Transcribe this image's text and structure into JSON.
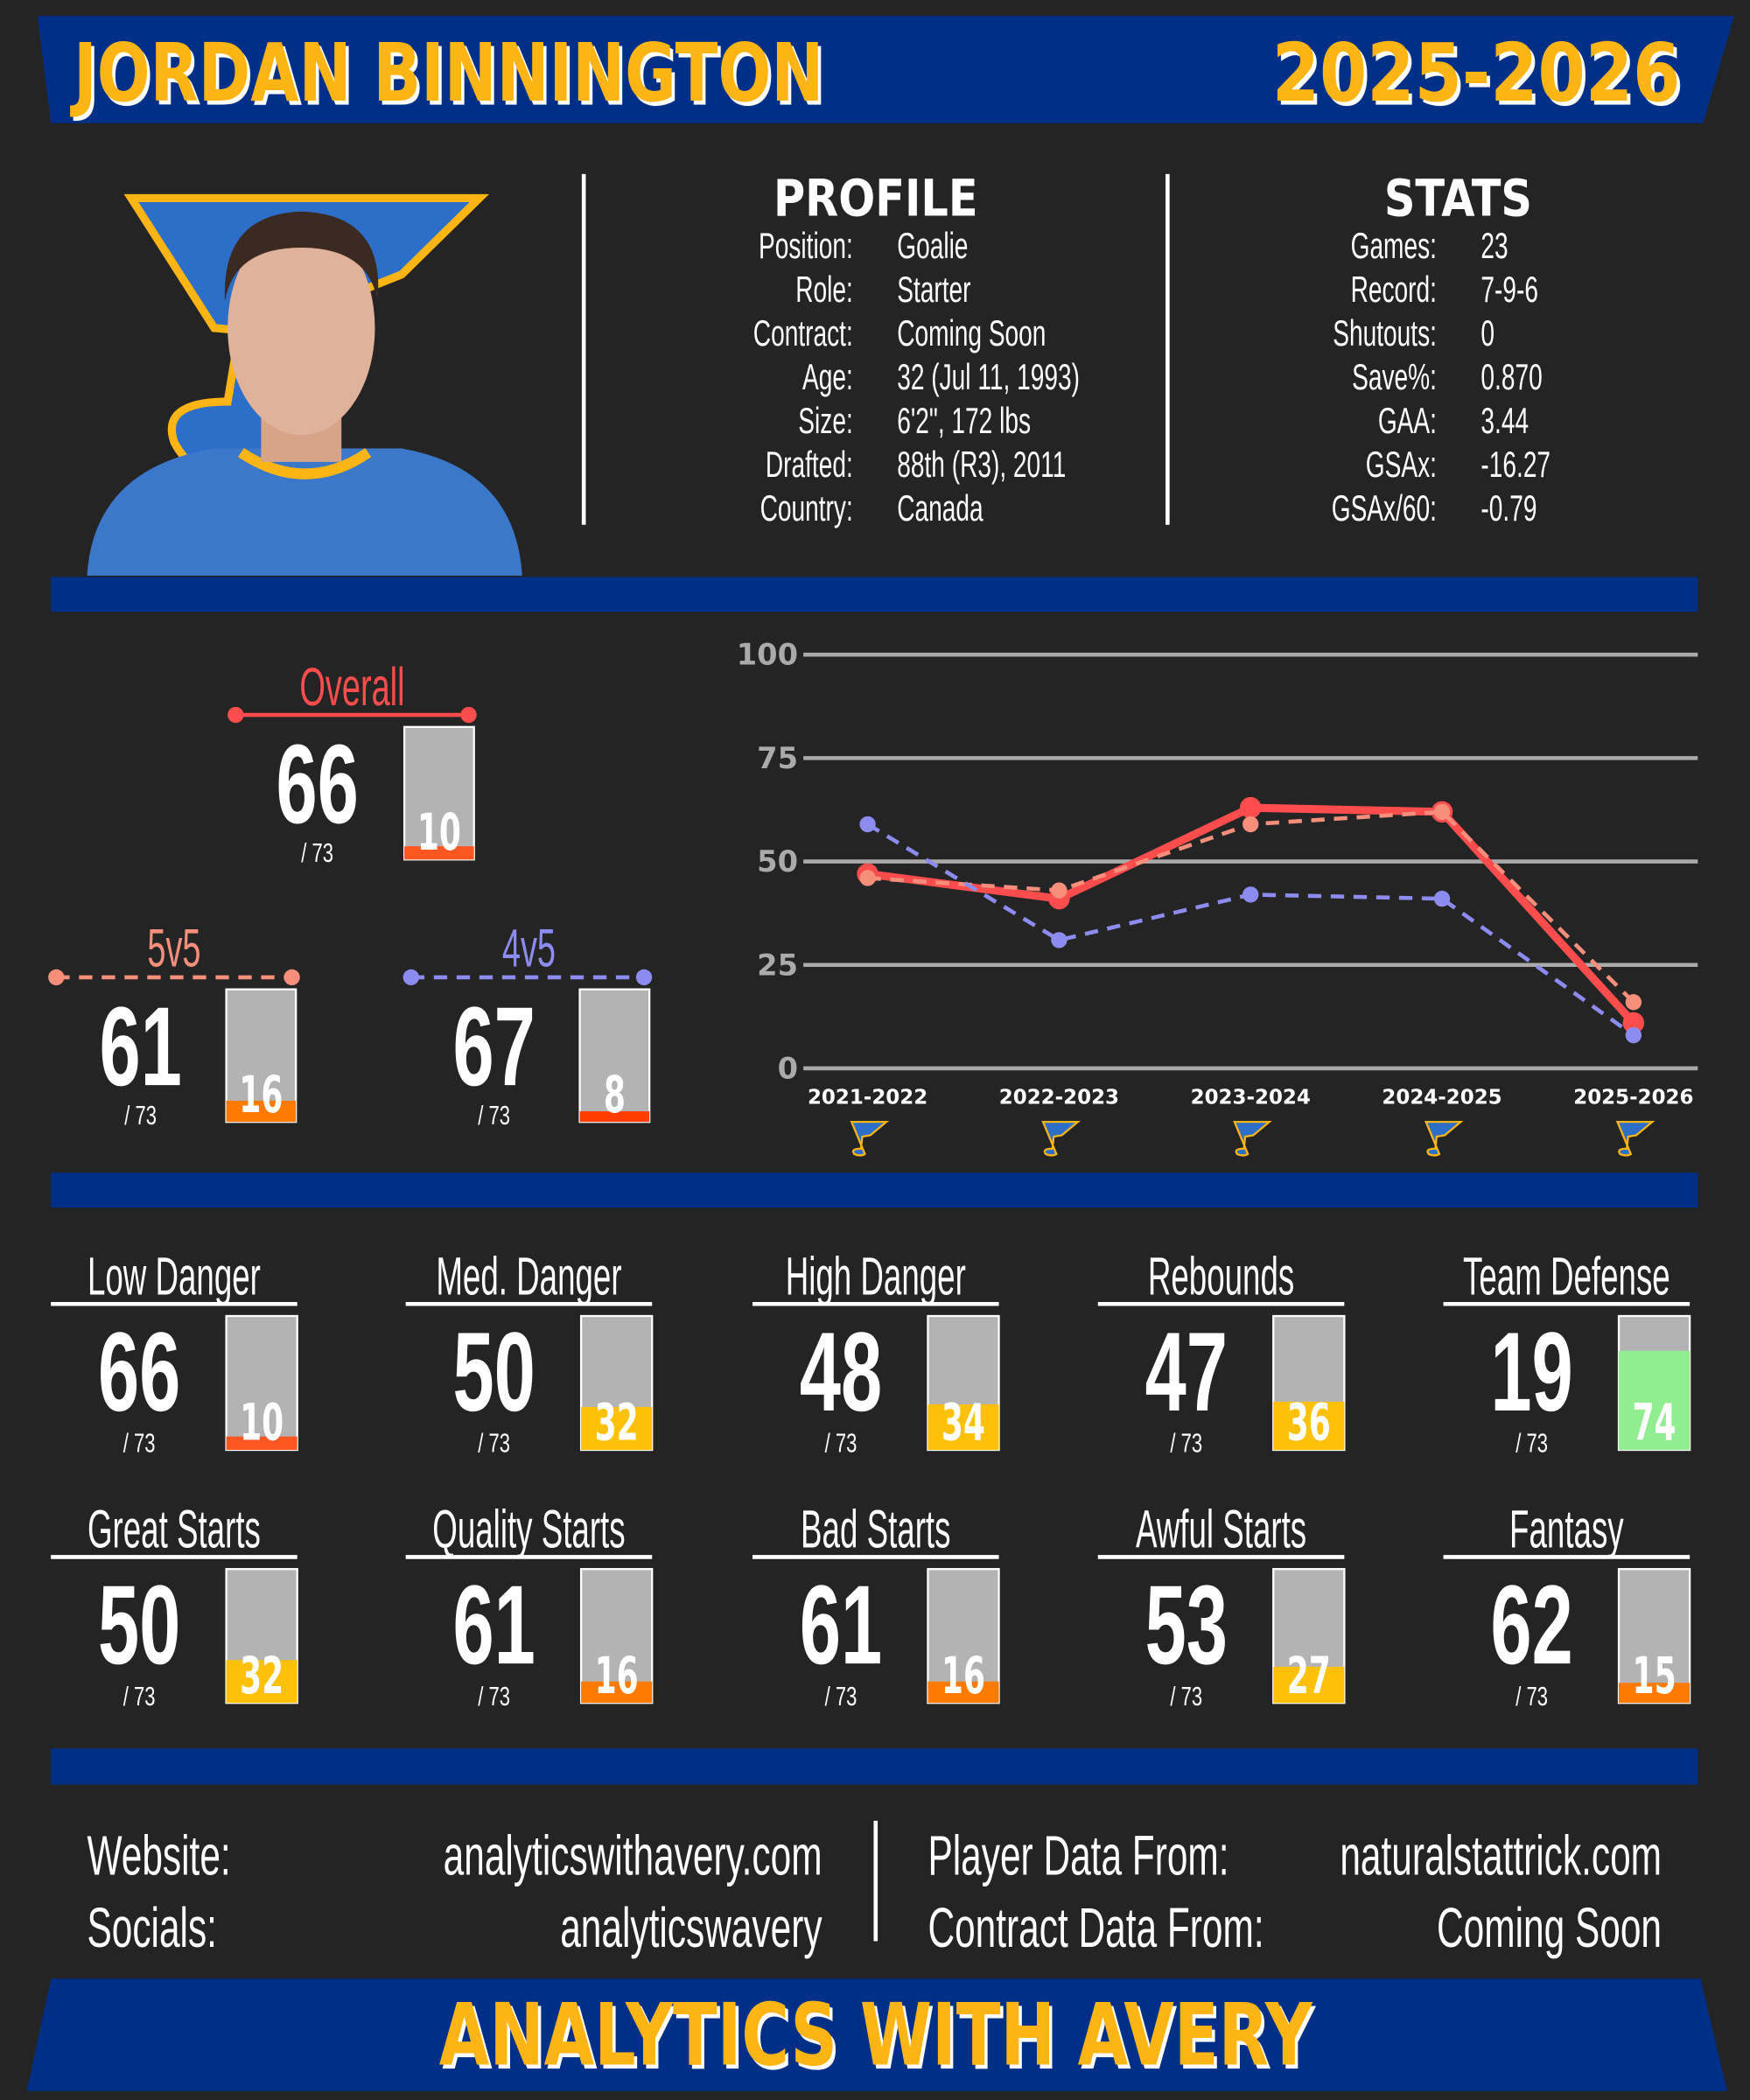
{
  "header": {
    "name": "JORDAN BINNINGTON",
    "season": "2025-2026"
  },
  "profile": {
    "title": "PROFILE",
    "rows": [
      [
        "Position:",
        "Goalie"
      ],
      [
        "Role:",
        "Starter"
      ],
      [
        "Contract:",
        "Coming Soon"
      ],
      [
        "Age:",
        "32 (Jul 11, 1993)"
      ],
      [
        "Size:",
        "6'2\", 172 lbs"
      ],
      [
        "Drafted:",
        "88th (R3), 2011"
      ],
      [
        "Country:",
        "Canada"
      ]
    ]
  },
  "stats": {
    "title": "STATS",
    "rows": [
      [
        "Games:",
        "23"
      ],
      [
        "Record:",
        "7-9-6"
      ],
      [
        "Shutouts:",
        "0"
      ],
      [
        "Save%:",
        "0.870"
      ],
      [
        "GAA:",
        "3.44"
      ],
      [
        "GSAx:",
        "-16.27"
      ],
      [
        "GSAx/60:",
        "-0.79"
      ]
    ]
  },
  "chart_data": {
    "type": "line",
    "categories": [
      "2021-2022",
      "2022-2023",
      "2023-2024",
      "2024-2025",
      "2025-2026"
    ],
    "series": [
      {
        "name": "Overall",
        "color": "#ff4d4d",
        "dashed": false,
        "values": [
          47,
          41,
          63,
          62,
          11
        ]
      },
      {
        "name": "5v5",
        "color": "#f58f7c",
        "dashed": true,
        "values": [
          46,
          43,
          59,
          62,
          16
        ]
      },
      {
        "name": "4v5",
        "color": "#8c8cf0",
        "dashed": true,
        "values": [
          59,
          31,
          42,
          41,
          8
        ]
      }
    ],
    "ylim": [
      0,
      100
    ],
    "yticks": [
      0,
      25,
      50,
      75,
      100
    ],
    "grid": true
  },
  "ratings": [
    {
      "value": 66,
      "out_of": "/ 73",
      "rank": 10,
      "color": "#ff5722"
    },
    {
      "value": 61,
      "out_of": "/ 73",
      "rank": 16,
      "color": "#ff7a00"
    },
    {
      "value": 67,
      "out_of": "/ 73",
      "rank": 8,
      "color": "#ff3d00"
    }
  ],
  "cards": [
    {
      "label": "Low Danger",
      "value": 66,
      "out_of": "/ 73",
      "rank": 10,
      "color": "#ff5722"
    },
    {
      "label": "Med. Danger",
      "value": 50,
      "out_of": "/ 73",
      "rank": 32,
      "color": "#ffc107"
    },
    {
      "label": "High Danger",
      "value": 48,
      "out_of": "/ 73",
      "rank": 34,
      "color": "#ffc107"
    },
    {
      "label": "Rebounds",
      "value": 47,
      "out_of": "/ 73",
      "rank": 36,
      "color": "#ffc107"
    },
    {
      "label": "Team Defense",
      "value": 19,
      "out_of": "/ 73",
      "rank": 74,
      "color": "#90ee90"
    },
    {
      "label": "Great Starts",
      "value": 50,
      "out_of": "/ 73",
      "rank": 32,
      "color": "#ffc107"
    },
    {
      "label": "Quality Starts",
      "value": 61,
      "out_of": "/ 73",
      "rank": 16,
      "color": "#ff7a00"
    },
    {
      "label": "Bad Starts",
      "value": 61,
      "out_of": "/ 73",
      "rank": 16,
      "color": "#ff7a00"
    },
    {
      "label": "Awful Starts",
      "value": 53,
      "out_of": "/ 73",
      "rank": 27,
      "color": "#ffc107"
    },
    {
      "label": "Fantasy",
      "value": 62,
      "out_of": "/ 73",
      "rank": 15,
      "color": "#ff7a00"
    }
  ],
  "footer": {
    "rows": [
      [
        "Website:",
        "analyticswithavery.com"
      ],
      [
        "Socials:",
        "analyticswavery"
      ],
      [
        "Player Data From:",
        "naturalstattrick.com"
      ],
      [
        "Contract Data From:",
        "Coming Soon"
      ]
    ],
    "banner": "ANALYTICS WITH AVERY"
  }
}
